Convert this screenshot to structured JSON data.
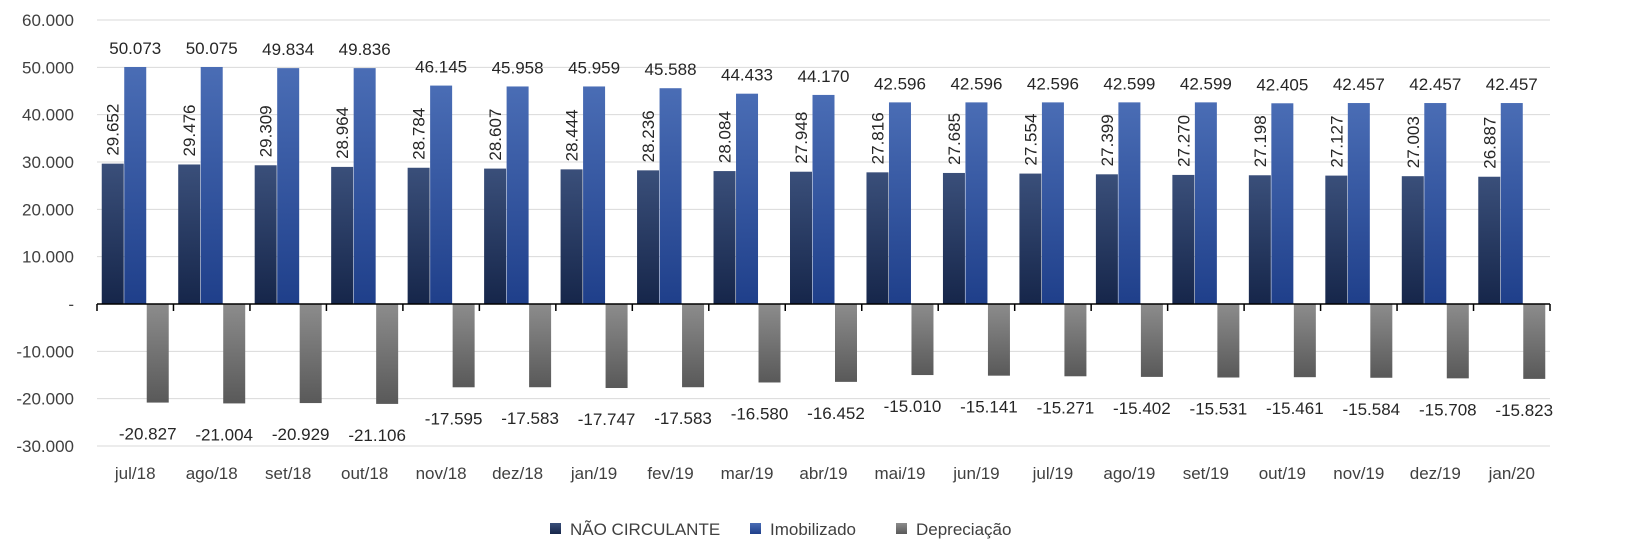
{
  "chart_data": {
    "type": "bar",
    "title": "",
    "xlabel": "",
    "ylabel": "",
    "ylim": [
      -30000,
      60000
    ],
    "y_ticks": [
      60000,
      50000,
      40000,
      30000,
      20000,
      10000,
      0,
      -10000,
      -20000,
      -30000
    ],
    "y_tick_labels": [
      "60.000",
      "50.000",
      "40.000",
      "30.000",
      "20.000",
      "10.000",
      "-",
      "-10.000",
      "-20.000",
      "-30.000"
    ],
    "grid": "horizontal",
    "legend_position": "bottom",
    "categories": [
      "jul/18",
      "ago/18",
      "set/18",
      "out/18",
      "nov/18",
      "dez/18",
      "jan/19",
      "fev/19",
      "mar/19",
      "abr/19",
      "mai/19",
      "jun/19",
      "jul/19",
      "ago/19",
      "set/19",
      "out/19",
      "nov/19",
      "dez/19",
      "jan/20"
    ],
    "series": [
      {
        "name": "NÃO CIRCULANTE",
        "color": "#1f3864",
        "values": [
          29652,
          29476,
          29309,
          28964,
          28784,
          28607,
          28444,
          28236,
          28084,
          27948,
          27816,
          27685,
          27554,
          27399,
          27270,
          27198,
          27127,
          27003,
          26887
        ],
        "labels": [
          "29.652",
          "29.476",
          "29.309",
          "28.964",
          "28.784",
          "28.607",
          "28.444",
          "28.236",
          "28.084",
          "27.948",
          "27.816",
          "27.685",
          "27.554",
          "27.399",
          "27.270",
          "27.198",
          "27.127",
          "27.003",
          "26.887"
        ]
      },
      {
        "name": "Imobilizado",
        "color": "#2f55a4",
        "values": [
          50073,
          50075,
          49834,
          49836,
          46145,
          45958,
          45959,
          45588,
          44433,
          44170,
          42596,
          42596,
          42596,
          42599,
          42599,
          42405,
          42457,
          42457,
          42457
        ],
        "labels": [
          "50.073",
          "50.075",
          "49.834",
          "49.836",
          "46.145",
          "45.958",
          "45.959",
          "45.588",
          "44.433",
          "44.170",
          "42.596",
          "42.596",
          "42.596",
          "42.599",
          "42.599",
          "42.405",
          "42.457",
          "42.457",
          "42.457"
        ]
      },
      {
        "name": "Depreciação",
        "color": "#7f7f7f",
        "values": [
          -20827,
          -21004,
          -20929,
          -21106,
          -17595,
          -17583,
          -17747,
          -17583,
          -16580,
          -16452,
          -15010,
          -15141,
          -15271,
          -15402,
          -15531,
          -15461,
          -15584,
          -15708,
          -15823
        ],
        "labels": [
          "-20.827",
          "-21.004",
          "-20.929",
          "-21.106",
          "-17.595",
          "-17.583",
          "-17.747",
          "-17.583",
          "-16.580",
          "-16.452",
          "-15.010",
          "-15.141",
          "-15.271",
          "-15.402",
          "-15.531",
          "-15.461",
          "-15.584",
          "-15.708",
          "-15.823"
        ]
      }
    ]
  }
}
